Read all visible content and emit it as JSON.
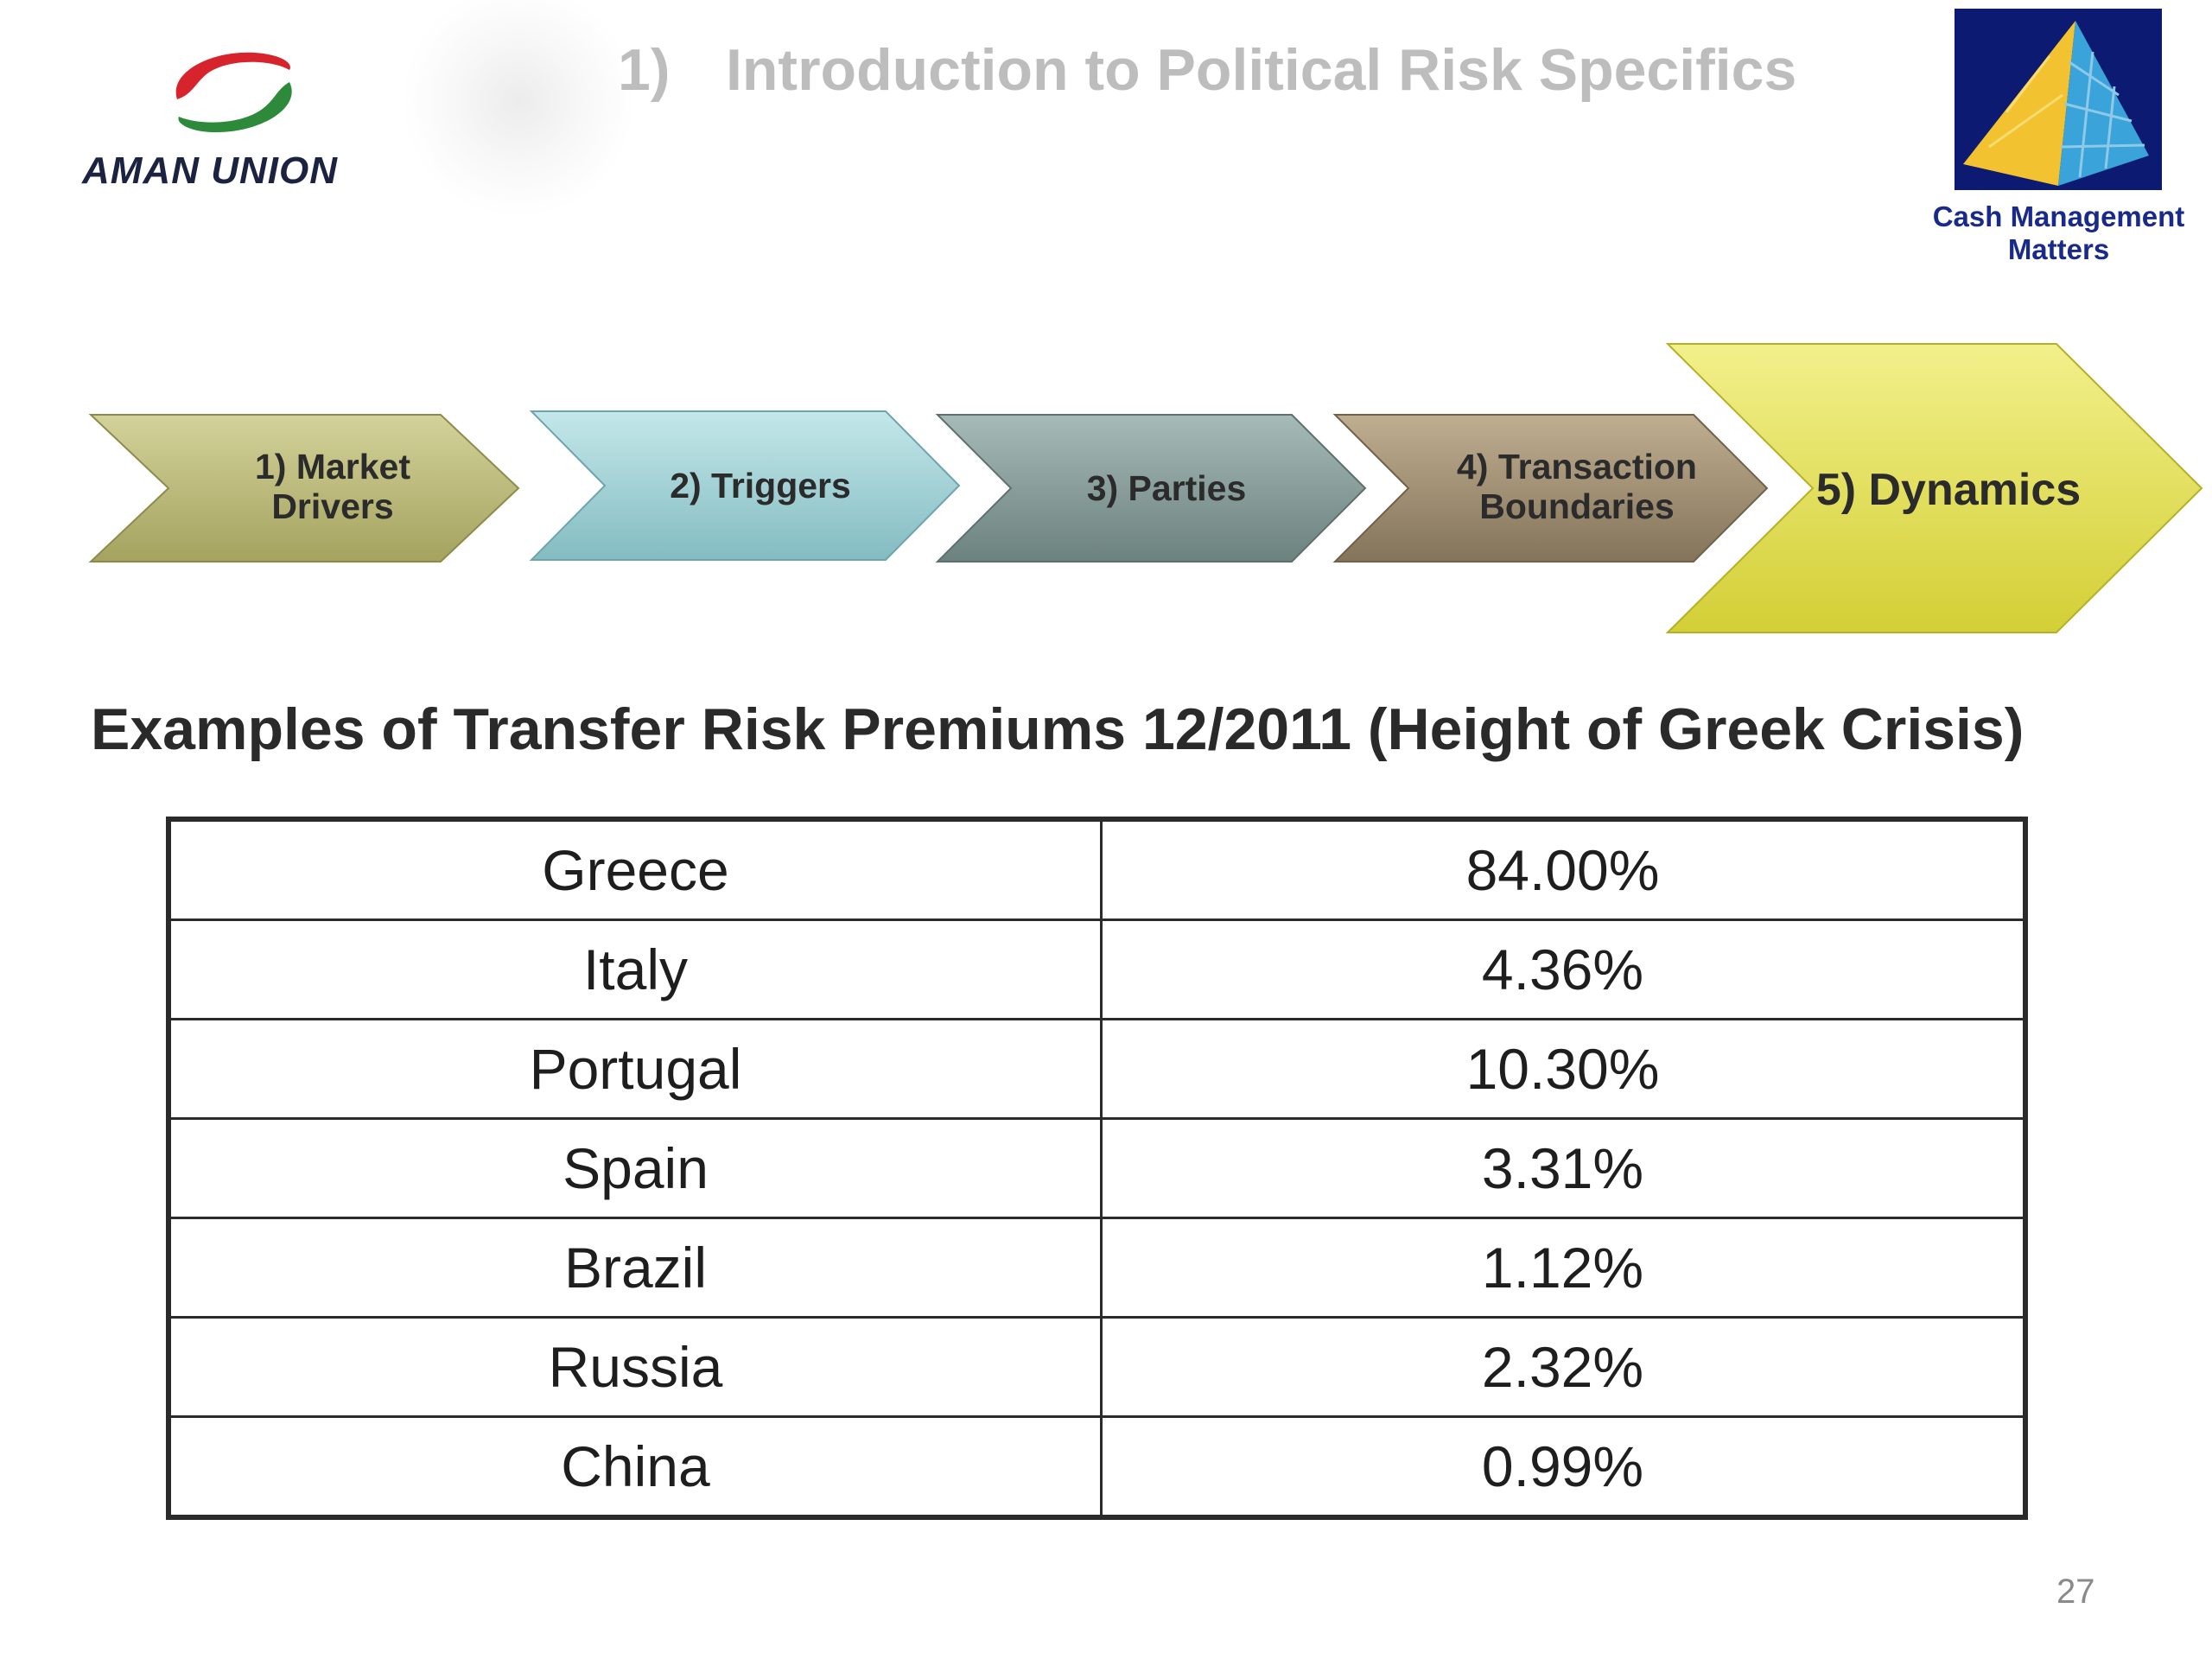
{
  "logo": {
    "company": "AMAN UNION"
  },
  "title": {
    "number": "1)",
    "text": "Introduction to Political Risk Specifics"
  },
  "badge": {
    "label": "Cash Management Matters"
  },
  "process": {
    "steps": [
      {
        "label": "1) Market Drivers",
        "color": "#b9b77a"
      },
      {
        "label": "2) Triggers",
        "color": "#9fcfd3"
      },
      {
        "label": "3) Parties",
        "color": "#879d9a"
      },
      {
        "label": "4) Transaction Boundaries",
        "color": "#a08f72"
      },
      {
        "label": "5) Dynamics",
        "color": "#e7e35e"
      }
    ]
  },
  "table": {
    "heading": "Examples of Transfer Risk Premiums 12/2011 (Height of Greek Crisis)",
    "rows": [
      {
        "country": "Greece",
        "premium": "84.00%"
      },
      {
        "country": "Italy",
        "premium": "4.36%"
      },
      {
        "country": "Portugal",
        "premium": "10.30%"
      },
      {
        "country": "Spain",
        "premium": "3.31%"
      },
      {
        "country": "Brazil",
        "premium": "1.12%"
      },
      {
        "country": "Russia",
        "premium": "2.32%"
      },
      {
        "country": "China",
        "premium": "0.99%"
      }
    ]
  },
  "page_number": "27"
}
